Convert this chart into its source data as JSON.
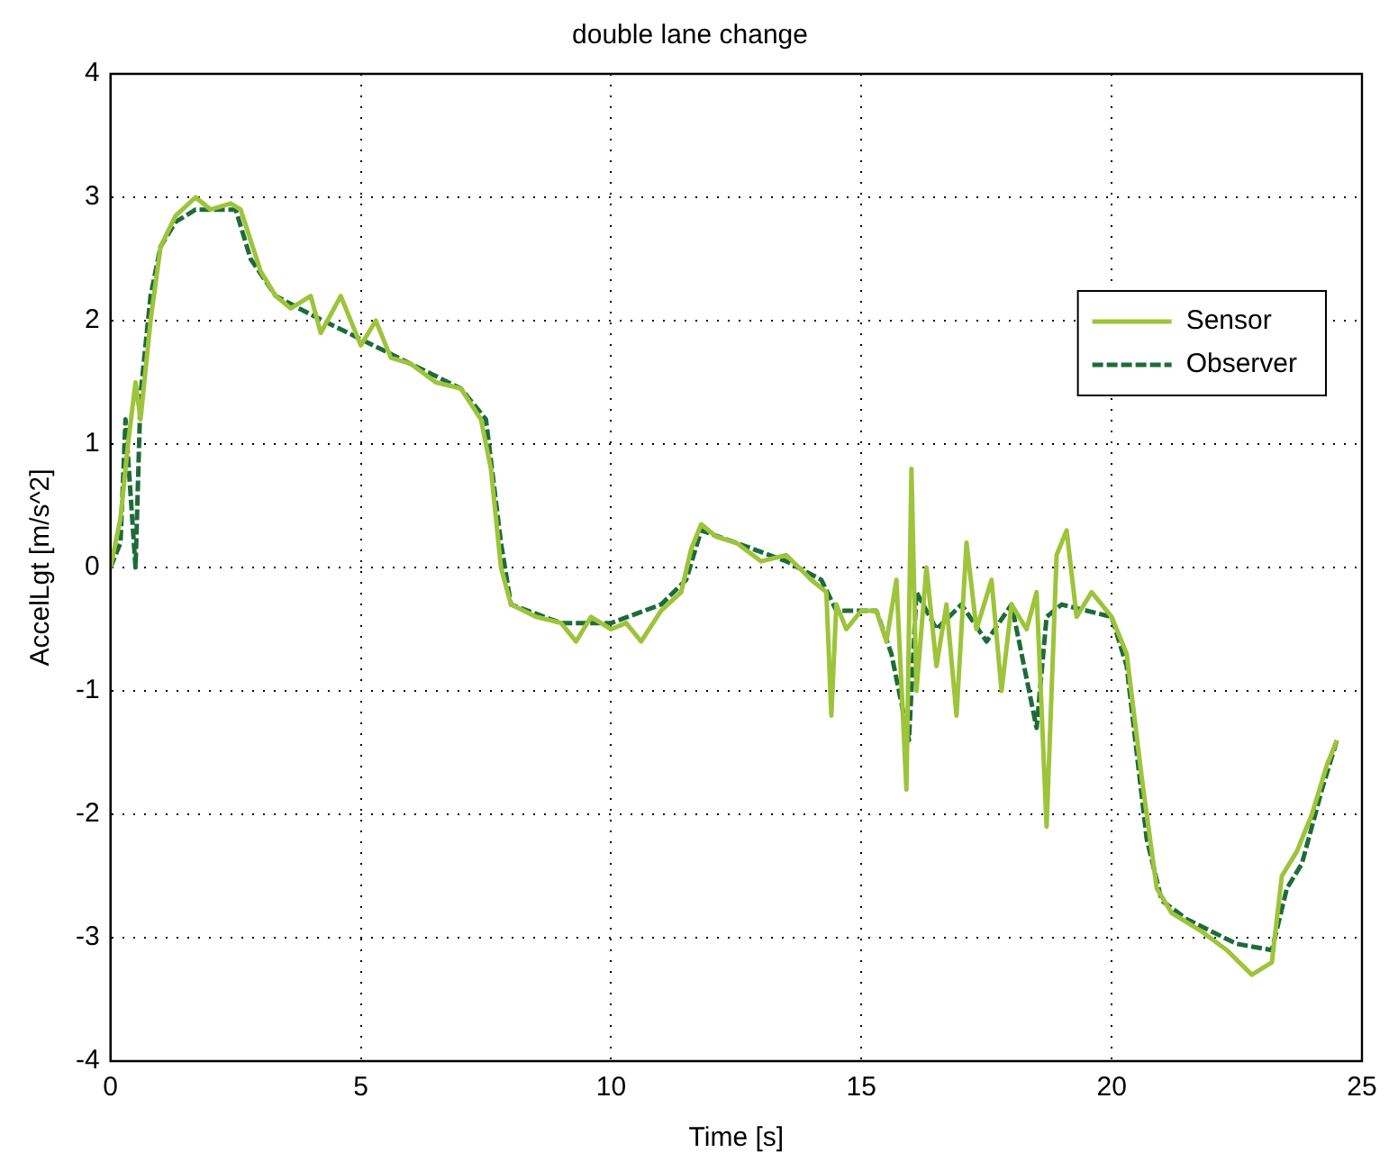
{
  "chart_data": {
    "type": "line",
    "title": "double lane change",
    "xlabel": "Time [s]",
    "ylabel": "AccelLgt [m/s^2]",
    "xlim": [
      0,
      25
    ],
    "xticks": [
      0,
      5,
      10,
      15,
      20,
      25
    ],
    "ylim": [
      -4,
      4
    ],
    "yticks": [
      -4,
      -3,
      -2,
      -1,
      0,
      1,
      2,
      3,
      4
    ],
    "grid": true,
    "legend": "top right",
    "marker": "none",
    "series": [
      {
        "name": "Sensor",
        "color": "#9dc43a",
        "line_style": "solid",
        "x": [
          0,
          0.2,
          0.35,
          0.5,
          0.6,
          0.8,
          1.0,
          1.3,
          1.7,
          2.0,
          2.4,
          2.6,
          3.0,
          3.3,
          3.6,
          4.0,
          4.2,
          4.6,
          5.0,
          5.3,
          5.6,
          6.0,
          6.5,
          7.0,
          7.4,
          7.6,
          7.8,
          8.0,
          8.5,
          9.0,
          9.3,
          9.6,
          10.0,
          10.3,
          10.6,
          11.0,
          11.4,
          11.6,
          11.8,
          12.1,
          12.5,
          13.0,
          13.5,
          14.0,
          14.3,
          14.4,
          14.5,
          14.7,
          15.0,
          15.3,
          15.5,
          15.7,
          15.9,
          16.0,
          16.1,
          16.3,
          16.5,
          16.7,
          16.9,
          17.1,
          17.3,
          17.6,
          17.8,
          18.0,
          18.3,
          18.5,
          18.7,
          18.9,
          19.1,
          19.3,
          19.6,
          20.0,
          20.3,
          20.6,
          20.9,
          21.2,
          21.8,
          22.3,
          22.8,
          23.2,
          23.4,
          23.7,
          24.0,
          24.3,
          24.5
        ],
        "values": [
          0,
          0.4,
          1.0,
          1.5,
          1.2,
          2.0,
          2.6,
          2.85,
          3.0,
          2.9,
          2.95,
          2.9,
          2.4,
          2.2,
          2.1,
          2.2,
          1.9,
          2.2,
          1.8,
          2.0,
          1.7,
          1.65,
          1.5,
          1.45,
          1.2,
          0.8,
          0.0,
          -0.3,
          -0.4,
          -0.45,
          -0.6,
          -0.4,
          -0.5,
          -0.45,
          -0.6,
          -0.35,
          -0.2,
          0.15,
          0.35,
          0.25,
          0.2,
          0.05,
          0.1,
          -0.1,
          -0.2,
          -1.2,
          -0.3,
          -0.5,
          -0.35,
          -0.35,
          -0.6,
          -0.1,
          -1.8,
          0.8,
          -1.0,
          0.0,
          -0.8,
          -0.3,
          -1.2,
          0.2,
          -0.5,
          -0.1,
          -1.0,
          -0.3,
          -0.5,
          -0.2,
          -2.1,
          0.1,
          0.3,
          -0.4,
          -0.2,
          -0.4,
          -0.7,
          -1.7,
          -2.6,
          -2.8,
          -2.95,
          -3.1,
          -3.3,
          -3.2,
          -2.5,
          -2.3,
          -2.0,
          -1.6,
          -1.4
        ]
      },
      {
        "name": "Observer",
        "color": "#1e6b3a",
        "line_style": "dashed",
        "x": [
          0,
          0.2,
          0.3,
          0.5,
          0.6,
          0.8,
          1.0,
          1.3,
          1.7,
          2.5,
          2.8,
          3.3,
          4.0,
          5.0,
          6.0,
          7.0,
          7.5,
          7.8,
          8.0,
          9.0,
          10.0,
          11.0,
          11.5,
          11.8,
          12.5,
          13.5,
          14.2,
          14.5,
          15.3,
          15.6,
          15.95,
          16.1,
          16.5,
          17.0,
          17.5,
          18.0,
          18.3,
          18.5,
          18.7,
          19.0,
          19.5,
          20.0,
          20.3,
          20.7,
          21.0,
          21.5,
          22.0,
          22.5,
          23.2,
          23.5,
          23.8,
          24.2,
          24.5
        ],
        "values": [
          0,
          0.2,
          1.2,
          0.0,
          1.4,
          2.2,
          2.6,
          2.8,
          2.9,
          2.9,
          2.5,
          2.2,
          2.05,
          1.85,
          1.65,
          1.45,
          1.2,
          0.2,
          -0.3,
          -0.45,
          -0.45,
          -0.3,
          -0.1,
          0.3,
          0.2,
          0.05,
          -0.1,
          -0.35,
          -0.35,
          -0.7,
          -1.4,
          -0.2,
          -0.5,
          -0.3,
          -0.6,
          -0.3,
          -0.9,
          -1.3,
          -0.4,
          -0.3,
          -0.35,
          -0.4,
          -0.8,
          -2.2,
          -2.7,
          -2.85,
          -2.95,
          -3.05,
          -3.1,
          -2.6,
          -2.4,
          -1.8,
          -1.4
        ]
      }
    ]
  }
}
